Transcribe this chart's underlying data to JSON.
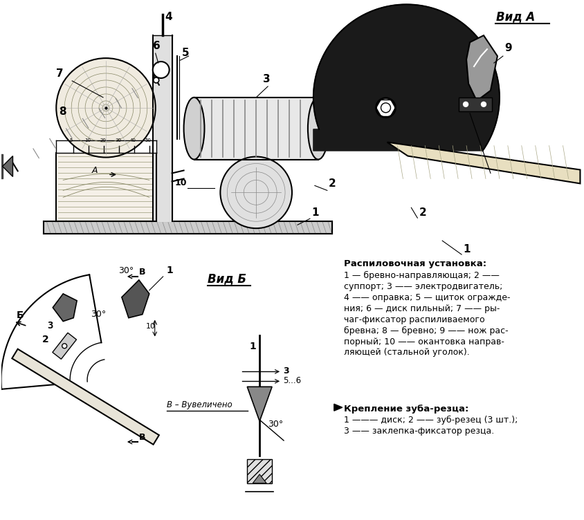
{
  "bg_color": "#ffffff",
  "black": "#000000",
  "gray": "#888888",
  "lightgray": "#cccccc",
  "description_title": "Распиловочная установка:",
  "description_body": "1 — бревно-направляющая; 2 ——\nсуппорт; 3 —— электродвигатель;\n4 —— оправка; 5 — щиток огражде-\nния; 6 — диск пильный; 7 —— ры-\nчаг-фиксатор распиливаемого\nбревна; 8 — бревно; 9 —— нож рас-\nпорный; 10 —— окантовка направ-\nляющей (стальной уголок).",
  "krepl_title": "Крепление зуба-резца:",
  "krepl_body": "1 ——— диск; 2 —— зуб-резец (3 шт.);\n3 —— заклепка-фиксатор резца.",
  "vid_a": "Вид A",
  "vid_b": "Вид Б",
  "vv_label": "В – Вувеличено"
}
